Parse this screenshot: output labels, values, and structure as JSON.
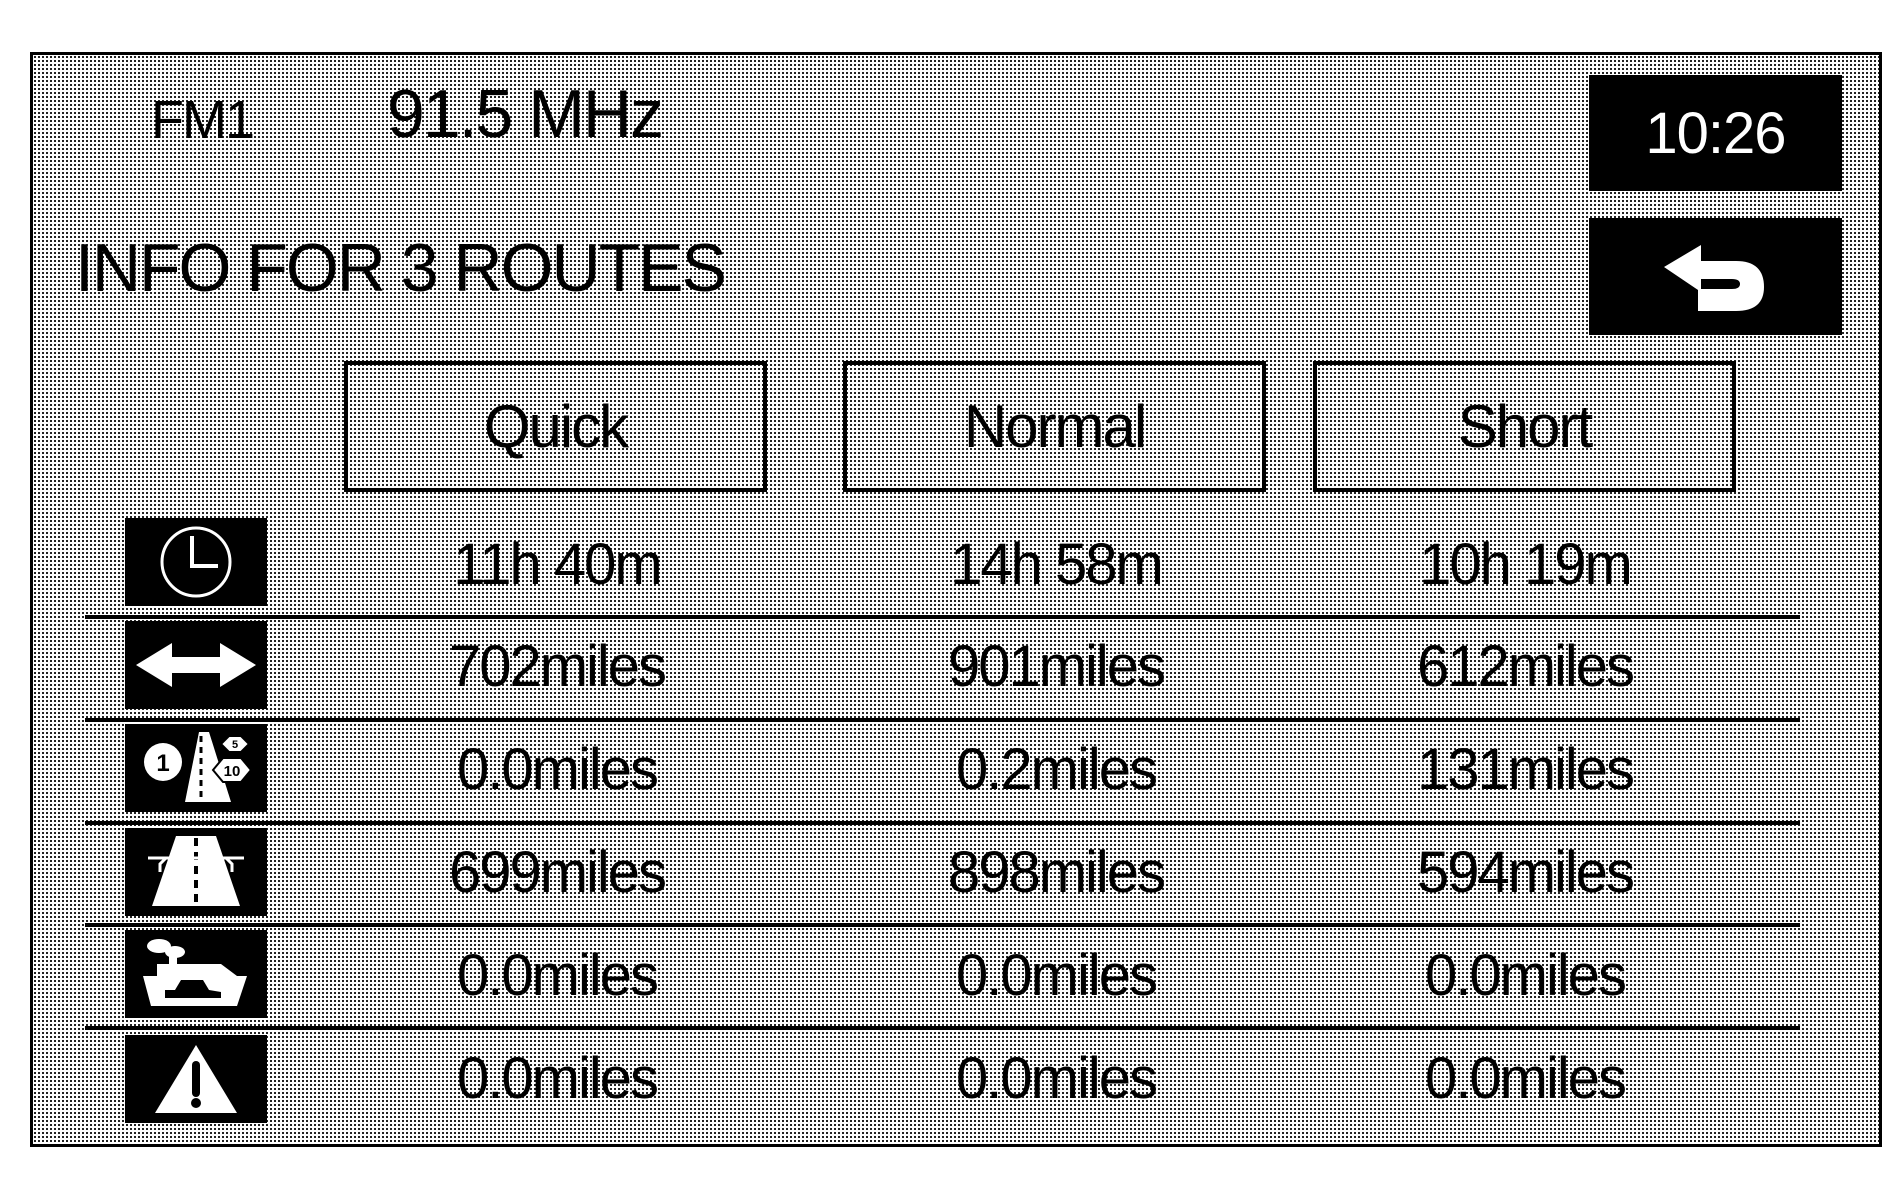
{
  "header": {
    "band": "FM1",
    "frequency": "91.5 MHz",
    "clock": "10:26"
  },
  "title": "INFO FOR 3 ROUTES",
  "back_icon": "back-arrow-icon",
  "routes": [
    {
      "label": "Quick"
    },
    {
      "label": "Normal"
    },
    {
      "label": "Short"
    }
  ],
  "rows": [
    {
      "icon": "clock-icon",
      "values": [
        "11h 40m",
        "14h 58m",
        "10h 19m"
      ]
    },
    {
      "icon": "distance-arrow-icon",
      "values": [
        "702miles",
        "901miles",
        "612miles"
      ]
    },
    {
      "icon": "local-road-icon",
      "values": [
        "0.0miles",
        "0.2miles",
        "131miles"
      ]
    },
    {
      "icon": "freeway-icon",
      "values": [
        "699miles",
        "898miles",
        "594miles"
      ]
    },
    {
      "icon": "ferry-icon",
      "values": [
        "0.0miles",
        "0.0miles",
        "0.0miles"
      ]
    },
    {
      "icon": "warning-icon",
      "values": [
        "0.0miles",
        "0.0miles",
        "0.0miles"
      ]
    }
  ]
}
